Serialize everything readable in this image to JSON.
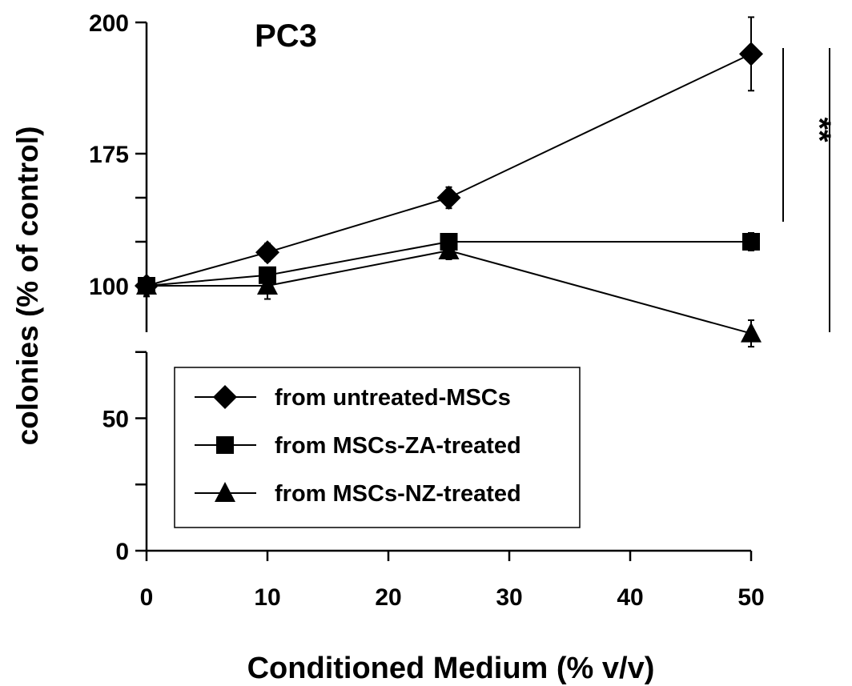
{
  "chart_data": {
    "type": "line",
    "title": "PC3",
    "xlabel": "Conditioned Medium (% v/v)",
    "ylabel": "colonies (% of control)",
    "xlim": [
      -1,
      52
    ],
    "ylim": [
      0,
      200
    ],
    "x_ticks": [
      0,
      10,
      20,
      30,
      40,
      50
    ],
    "x_tick_labels": [
      "0",
      "10",
      "20",
      "30",
      "40",
      "50"
    ],
    "y_ticks": [
      0,
      50,
      100,
      175,
      200
    ],
    "y_tick_labels": [
      "0",
      "50",
      "100",
      "175",
      "200"
    ],
    "y_minor_ticks": [
      25,
      75,
      125,
      150
    ],
    "y_scale": "linear with axis break: 125 and 150 unlabeled, section between 100 and 175 drawn compressed",
    "grid": false,
    "legend_position": "lower-left inside plot",
    "series": [
      {
        "name": "from untreated-MSCs",
        "marker": "diamond",
        "x": [
          0,
          10,
          25,
          50
        ],
        "y": [
          100,
          119,
          150,
          194
        ],
        "err": [
          4,
          5,
          6,
          7
        ]
      },
      {
        "name": "from MSCs-ZA-treated",
        "marker": "square",
        "x": [
          0,
          10,
          25,
          50
        ],
        "y": [
          100,
          106,
          125,
          125
        ],
        "err": [
          3,
          4,
          4,
          5
        ]
      },
      {
        "name": "from MSCs-NZ-treated",
        "marker": "triangle",
        "x": [
          0,
          10,
          25,
          50
        ],
        "y": [
          100,
          100,
          120,
          82
        ],
        "err": [
          4,
          5,
          5,
          5
        ]
      }
    ],
    "annotations": [
      {
        "text": "**",
        "between": [
          "from untreated-MSCs",
          "from MSCs-ZA-treated"
        ],
        "at_x": 50
      },
      {
        "text": "***",
        "between": [
          "from untreated-MSCs",
          "from MSCs-NZ-treated"
        ],
        "at_x": 50
      }
    ]
  }
}
